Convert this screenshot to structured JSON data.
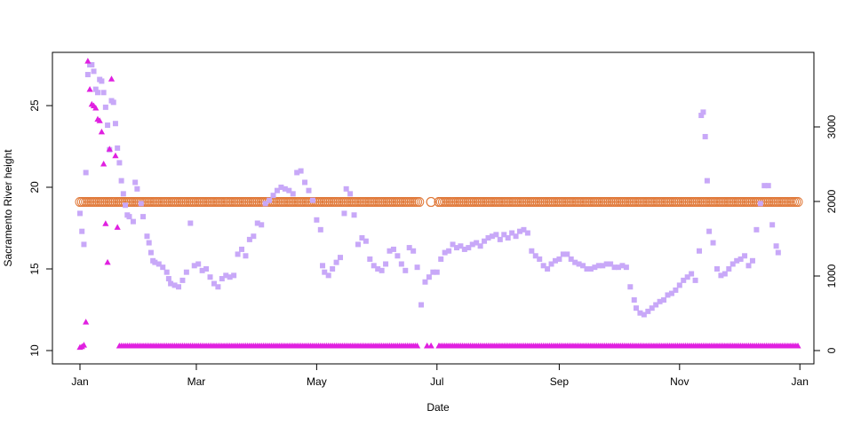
{
  "chart_data": {
    "type": "scatter",
    "title": "",
    "xlabel": "Date",
    "ylabel": "Sacramento River height",
    "y2label": "",
    "x_range": [
      "2023-01-01",
      "2023-12-31"
    ],
    "x_ticks": [
      {
        "label": "Jan",
        "date": "2023-01-01"
      },
      {
        "label": "Mar",
        "date": "2023-03-01"
      },
      {
        "label": "May",
        "date": "2023-05-01"
      },
      {
        "label": "Jul",
        "date": "2023-07-01"
      },
      {
        "label": "Sep",
        "date": "2023-09-01"
      },
      {
        "label": "Nov",
        "date": "2023-11-01"
      },
      {
        "label": "Jan",
        "date": "2024-01-01"
      }
    ],
    "ylim": [
      10,
      27.6
    ],
    "y_ticks": [
      10,
      15,
      20,
      25
    ],
    "y2lim": [
      -100,
      4000
    ],
    "y2_ticks": [
      0,
      1000,
      2000,
      3000
    ],
    "colors": {
      "height": "#c8a8f8",
      "flow": "#e020e0",
      "constant": "#e07838"
    },
    "series": [
      {
        "axis": "left",
        "marker": "square",
        "color": "#c8a8f8",
        "points": [
          [
            "2023-01-01",
            18.4
          ],
          [
            "2023-01-02",
            17.3
          ],
          [
            "2023-01-03",
            16.5
          ],
          [
            "2023-01-04",
            20.9
          ],
          [
            "2023-01-05",
            26.9
          ],
          [
            "2023-01-06",
            27.5
          ],
          [
            "2023-01-07",
            27.5
          ],
          [
            "2023-01-08",
            27.1
          ],
          [
            "2023-01-09",
            26.0
          ],
          [
            "2023-01-10",
            25.8
          ],
          [
            "2023-01-11",
            26.6
          ],
          [
            "2023-01-12",
            26.5
          ],
          [
            "2023-01-13",
            25.8
          ],
          [
            "2023-01-14",
            24.9
          ],
          [
            "2023-01-15",
            23.8
          ],
          [
            "2023-01-16",
            22.3
          ],
          [
            "2023-01-17",
            25.3
          ],
          [
            "2023-01-18",
            25.2
          ],
          [
            "2023-01-19",
            23.9
          ],
          [
            "2023-01-20",
            22.4
          ],
          [
            "2023-01-21",
            21.5
          ],
          [
            "2023-01-22",
            20.4
          ],
          [
            "2023-01-23",
            19.6
          ],
          [
            "2023-01-24",
            18.9
          ],
          [
            "2023-01-25",
            18.3
          ],
          [
            "2023-01-26",
            18.2
          ],
          [
            "2023-01-28",
            17.9
          ],
          [
            "2023-01-29",
            20.3
          ],
          [
            "2023-01-30",
            19.9
          ],
          [
            "2023-02-01",
            19.0
          ],
          [
            "2023-02-02",
            18.2
          ],
          [
            "2023-02-04",
            17.0
          ],
          [
            "2023-02-05",
            16.6
          ],
          [
            "2023-02-06",
            16.0
          ],
          [
            "2023-02-07",
            15.5
          ],
          [
            "2023-02-08",
            15.4
          ],
          [
            "2023-02-10",
            15.3
          ],
          [
            "2023-02-12",
            15.1
          ],
          [
            "2023-02-14",
            14.8
          ],
          [
            "2023-02-15",
            14.4
          ],
          [
            "2023-02-16",
            14.1
          ],
          [
            "2023-02-18",
            14.0
          ],
          [
            "2023-02-20",
            13.9
          ],
          [
            "2023-02-22",
            14.3
          ],
          [
            "2023-02-24",
            14.8
          ],
          [
            "2023-02-26",
            17.8
          ],
          [
            "2023-02-28",
            15.2
          ],
          [
            "2023-03-02",
            15.3
          ],
          [
            "2023-03-04",
            14.9
          ],
          [
            "2023-03-06",
            15.0
          ],
          [
            "2023-03-08",
            14.5
          ],
          [
            "2023-03-10",
            14.1
          ],
          [
            "2023-03-12",
            13.9
          ],
          [
            "2023-03-14",
            14.4
          ],
          [
            "2023-03-16",
            14.6
          ],
          [
            "2023-03-18",
            14.5
          ],
          [
            "2023-03-20",
            14.6
          ],
          [
            "2023-03-22",
            15.9
          ],
          [
            "2023-03-24",
            16.2
          ],
          [
            "2023-03-26",
            15.8
          ],
          [
            "2023-03-28",
            16.8
          ],
          [
            "2023-03-30",
            17.0
          ],
          [
            "2023-04-01",
            17.8
          ],
          [
            "2023-04-03",
            17.7
          ],
          [
            "2023-04-05",
            19.0
          ],
          [
            "2023-04-07",
            19.2
          ],
          [
            "2023-04-09",
            19.5
          ],
          [
            "2023-04-11",
            19.8
          ],
          [
            "2023-04-13",
            20.0
          ],
          [
            "2023-04-15",
            19.9
          ],
          [
            "2023-04-17",
            19.8
          ],
          [
            "2023-04-19",
            19.6
          ],
          [
            "2023-04-21",
            20.9
          ],
          [
            "2023-04-23",
            21.0
          ],
          [
            "2023-04-25",
            20.3
          ],
          [
            "2023-04-27",
            19.8
          ],
          [
            "2023-04-29",
            19.2
          ],
          [
            "2023-05-01",
            18.0
          ],
          [
            "2023-05-03",
            17.4
          ],
          [
            "2023-05-04",
            15.2
          ],
          [
            "2023-05-05",
            14.8
          ],
          [
            "2023-05-07",
            14.6
          ],
          [
            "2023-05-09",
            15.0
          ],
          [
            "2023-05-11",
            15.4
          ],
          [
            "2023-05-13",
            15.7
          ],
          [
            "2023-05-15",
            18.4
          ],
          [
            "2023-05-16",
            19.9
          ],
          [
            "2023-05-18",
            19.6
          ],
          [
            "2023-05-20",
            18.3
          ],
          [
            "2023-05-22",
            16.5
          ],
          [
            "2023-05-24",
            16.9
          ],
          [
            "2023-05-26",
            16.7
          ],
          [
            "2023-05-28",
            15.6
          ],
          [
            "2023-05-30",
            15.2
          ],
          [
            "2023-06-01",
            15.0
          ],
          [
            "2023-06-03",
            14.9
          ],
          [
            "2023-06-05",
            15.3
          ],
          [
            "2023-06-07",
            16.1
          ],
          [
            "2023-06-09",
            16.2
          ],
          [
            "2023-06-11",
            15.8
          ],
          [
            "2023-06-13",
            15.3
          ],
          [
            "2023-06-15",
            14.9
          ],
          [
            "2023-06-17",
            16.3
          ],
          [
            "2023-06-19",
            16.1
          ],
          [
            "2023-06-21",
            15.1
          ],
          [
            "2023-06-23",
            12.8
          ],
          [
            "2023-06-25",
            14.2
          ],
          [
            "2023-06-27",
            14.5
          ],
          [
            "2023-06-29",
            14.8
          ],
          [
            "2023-07-01",
            14.8
          ],
          [
            "2023-07-03",
            15.6
          ],
          [
            "2023-07-05",
            16.0
          ],
          [
            "2023-07-07",
            16.1
          ],
          [
            "2023-07-09",
            16.5
          ],
          [
            "2023-07-11",
            16.3
          ],
          [
            "2023-07-13",
            16.4
          ],
          [
            "2023-07-15",
            16.2
          ],
          [
            "2023-07-17",
            16.3
          ],
          [
            "2023-07-19",
            16.5
          ],
          [
            "2023-07-21",
            16.6
          ],
          [
            "2023-07-23",
            16.4
          ],
          [
            "2023-07-25",
            16.7
          ],
          [
            "2023-07-27",
            16.9
          ],
          [
            "2023-07-29",
            17.0
          ],
          [
            "2023-07-31",
            17.1
          ],
          [
            "2023-08-02",
            16.8
          ],
          [
            "2023-08-04",
            17.1
          ],
          [
            "2023-08-06",
            16.9
          ],
          [
            "2023-08-08",
            17.2
          ],
          [
            "2023-08-10",
            17.0
          ],
          [
            "2023-08-12",
            17.3
          ],
          [
            "2023-08-14",
            17.4
          ],
          [
            "2023-08-16",
            17.2
          ],
          [
            "2023-08-18",
            16.1
          ],
          [
            "2023-08-20",
            15.8
          ],
          [
            "2023-08-22",
            15.6
          ],
          [
            "2023-08-24",
            15.2
          ],
          [
            "2023-08-26",
            15.0
          ],
          [
            "2023-08-28",
            15.3
          ],
          [
            "2023-08-30",
            15.5
          ],
          [
            "2023-09-01",
            15.6
          ],
          [
            "2023-09-03",
            15.9
          ],
          [
            "2023-09-05",
            15.9
          ],
          [
            "2023-09-07",
            15.6
          ],
          [
            "2023-09-09",
            15.4
          ],
          [
            "2023-09-11",
            15.3
          ],
          [
            "2023-09-13",
            15.2
          ],
          [
            "2023-09-15",
            15.0
          ],
          [
            "2023-09-17",
            15.0
          ],
          [
            "2023-09-19",
            15.1
          ],
          [
            "2023-09-21",
            15.2
          ],
          [
            "2023-09-23",
            15.2
          ],
          [
            "2023-09-25",
            15.3
          ],
          [
            "2023-09-27",
            15.3
          ],
          [
            "2023-09-29",
            15.1
          ],
          [
            "2023-10-01",
            15.1
          ],
          [
            "2023-10-03",
            15.2
          ],
          [
            "2023-10-05",
            15.1
          ],
          [
            "2023-10-07",
            13.9
          ],
          [
            "2023-10-09",
            13.1
          ],
          [
            "2023-10-10",
            12.6
          ],
          [
            "2023-10-12",
            12.3
          ],
          [
            "2023-10-14",
            12.2
          ],
          [
            "2023-10-16",
            12.4
          ],
          [
            "2023-10-18",
            12.6
          ],
          [
            "2023-10-20",
            12.8
          ],
          [
            "2023-10-22",
            13.0
          ],
          [
            "2023-10-24",
            13.1
          ],
          [
            "2023-10-26",
            13.4
          ],
          [
            "2023-10-28",
            13.5
          ],
          [
            "2023-10-30",
            13.7
          ],
          [
            "2023-11-01",
            14.0
          ],
          [
            "2023-11-03",
            14.3
          ],
          [
            "2023-11-05",
            14.5
          ],
          [
            "2023-11-07",
            14.7
          ],
          [
            "2023-11-09",
            14.3
          ],
          [
            "2023-11-11",
            16.1
          ],
          [
            "2023-11-12",
            24.4
          ],
          [
            "2023-11-13",
            24.6
          ],
          [
            "2023-11-14",
            23.1
          ],
          [
            "2023-11-15",
            20.4
          ],
          [
            "2023-11-16",
            17.3
          ],
          [
            "2023-11-18",
            16.6
          ],
          [
            "2023-11-20",
            15.0
          ],
          [
            "2023-11-22",
            14.6
          ],
          [
            "2023-11-24",
            14.7
          ],
          [
            "2023-11-26",
            15.0
          ],
          [
            "2023-11-28",
            15.3
          ],
          [
            "2023-11-30",
            15.5
          ],
          [
            "2023-12-02",
            15.6
          ],
          [
            "2023-12-04",
            15.8
          ],
          [
            "2023-12-06",
            15.2
          ],
          [
            "2023-12-08",
            15.5
          ],
          [
            "2023-12-10",
            17.4
          ],
          [
            "2023-12-12",
            19.0
          ],
          [
            "2023-12-14",
            20.1
          ],
          [
            "2023-12-16",
            20.1
          ],
          [
            "2023-12-18",
            17.7
          ],
          [
            "2023-12-20",
            16.4
          ],
          [
            "2023-12-21",
            16.0
          ]
        ]
      },
      {
        "axis": "right",
        "marker": "triangle",
        "color": "#e020e0",
        "points": [
          [
            "2023-01-01",
            40
          ],
          [
            "2023-01-02",
            50
          ],
          [
            "2023-01-03",
            70
          ],
          [
            "2023-01-04",
            380
          ],
          [
            "2023-01-05",
            3880
          ],
          [
            "2023-01-06",
            3500
          ],
          [
            "2023-01-07",
            3300
          ],
          [
            "2023-01-08",
            3280
          ],
          [
            "2023-01-09",
            3250
          ],
          [
            "2023-01-10",
            3100
          ],
          [
            "2023-01-11",
            3080
          ],
          [
            "2023-01-12",
            2930
          ],
          [
            "2023-01-13",
            2500
          ],
          [
            "2023-01-14",
            1700
          ],
          [
            "2023-01-15",
            1180
          ],
          [
            "2023-01-16",
            2700
          ],
          [
            "2023-01-17",
            3640
          ],
          [
            "2023-01-19",
            2610
          ],
          [
            "2023-01-20",
            1650
          ]
        ]
      },
      {
        "axis": "right",
        "marker": "triangle",
        "color": "#e020e0",
        "baseline": true,
        "from": "2023-01-21",
        "to": "2023-12-31",
        "value": 60,
        "gaps": [
          [
            "2023-06-21",
            "2023-06-26"
          ],
          [
            "2023-06-26",
            "2023-06-28"
          ],
          [
            "2023-06-28",
            "2023-07-02"
          ]
        ]
      },
      {
        "axis": "left",
        "marker": "circle",
        "color": "#e07838",
        "from": "2023-01-01",
        "to": "2023-12-31",
        "value": 19.1,
        "gaps": [
          [
            "2023-06-22",
            "2023-06-28"
          ],
          [
            "2023-06-28",
            "2023-07-02"
          ]
        ]
      }
    ]
  }
}
